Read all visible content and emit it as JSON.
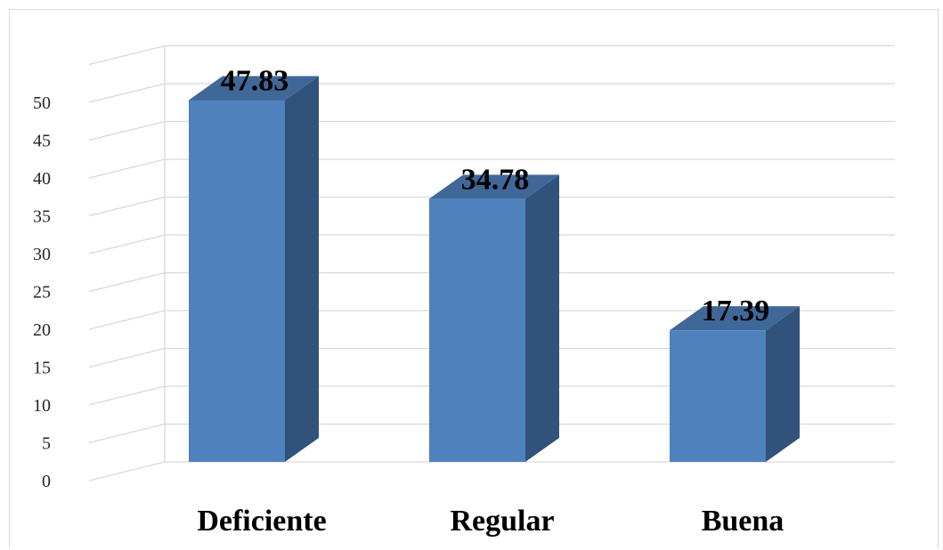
{
  "chart_data": {
    "type": "bar",
    "style": "3d-column",
    "title": "",
    "xlabel": "",
    "ylabel": "",
    "categories": [
      "Deficiente",
      "Regular",
      "Buena"
    ],
    "values": [
      47.83,
      34.78,
      17.39
    ],
    "data_labels": [
      "47.83",
      "34.78",
      "17.39"
    ],
    "ylim": [
      0,
      50
    ],
    "yticks": [
      0,
      5,
      10,
      15,
      20,
      25,
      30,
      35,
      40,
      45,
      50
    ],
    "grid": true,
    "legend": "none",
    "colors": {
      "front": "#4f81bd",
      "side": "#31527a",
      "top": "#3f6898",
      "grid": "#d9d9d9"
    }
  }
}
